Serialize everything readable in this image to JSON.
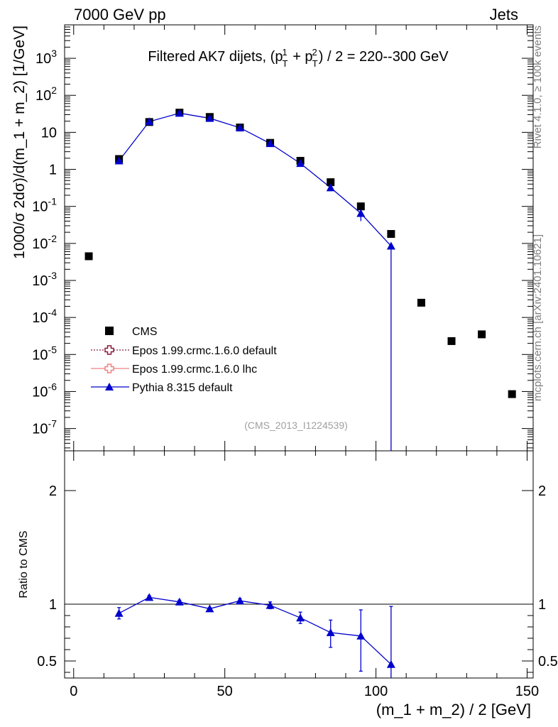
{
  "header": {
    "left": "7000 GeV pp",
    "right": "Jets"
  },
  "side_labels": {
    "top": "Rivet 4.1.0, ≥ 100k events",
    "bottom": "mcplots.cern.ch [arXiv:2401.10621]"
  },
  "chart_data": [
    {
      "type": "scatter",
      "panel": "main",
      "title": "Filtered AK7 dijets",
      "title_suffix": "/ 2 = 220--300 GeV",
      "ylabel": "1000/σ  2dσ)/d(m_1 + m_2) [1/GeV]",
      "watermark": "(CMS_2013_I1224539)",
      "yscale": "log",
      "xlim": [
        -3,
        152
      ],
      "ylim": [
        2.5e-08,
        8000
      ],
      "y_tick_labels": [
        "10^-7",
        "10^-6",
        "10^-5",
        "10^-4",
        "10^-3",
        "10^-2",
        "10^-1",
        "1",
        "10",
        "10^2",
        "10^3"
      ],
      "legend_position": "lower-left",
      "series": [
        {
          "name": "CMS",
          "style": "square",
          "color": "#000000",
          "x": [
            5,
            15,
            25,
            35,
            45,
            55,
            65,
            75,
            85,
            95,
            105,
            115,
            125,
            135,
            145
          ],
          "y": [
            0.0045,
            1.9,
            19.0,
            34.0,
            26.0,
            13.5,
            5.2,
            1.7,
            0.45,
            0.1,
            0.018,
            0.00025,
            2.3e-05,
            3.5e-05,
            8.5e-07
          ]
        },
        {
          "name": "Epos 1.99.crmc.1.6.0 default",
          "style": "open-cross-dotted",
          "color": "#8b1a3a",
          "x": [],
          "y": []
        },
        {
          "name": "Epos 1.99.crmc.1.6.0 lhc",
          "style": "open-cross-solid",
          "color": "#f08080",
          "x": [],
          "y": []
        },
        {
          "name": "Pythia 8.315 default",
          "style": "triangle-line",
          "color": "#0000cc",
          "x": [
            15,
            25,
            35,
            45,
            55,
            65,
            75,
            85,
            95,
            105
          ],
          "y": [
            1.7,
            19.5,
            33.0,
            24.0,
            13.3,
            5.0,
            1.45,
            0.32,
            0.065,
            0.0085
          ],
          "yerr_low": [
            0.05,
            0.3,
            0.4,
            0.3,
            0.2,
            0.1,
            0.05,
            0.03,
            0.025,
            0.0085
          ],
          "yerr_high": [
            0.05,
            0.3,
            0.4,
            0.3,
            0.2,
            0.1,
            0.05,
            0.03,
            0.015,
            0.0
          ]
        }
      ]
    },
    {
      "type": "line",
      "panel": "ratio",
      "ylabel": "Ratio to CMS",
      "xlabel": "(m_1 + m_2) / 2 [GeV]",
      "xlim": [
        -3,
        152
      ],
      "ylim": [
        0.35,
        2.35
      ],
      "x_tick_labels": [
        "0",
        "50",
        "100",
        "150"
      ],
      "y_tick_labels": [
        "0.5",
        "1",
        "2"
      ],
      "reference_line": 1,
      "series": [
        {
          "name": "Pythia 8.315 default",
          "color": "#0000cc",
          "x": [
            15,
            25,
            35,
            45,
            55,
            65,
            75,
            85,
            95,
            105
          ],
          "y": [
            0.92,
            1.06,
            1.02,
            0.96,
            1.03,
            0.99,
            0.88,
            0.75,
            0.72,
            0.47
          ],
          "yerr_low": [
            0.05,
            0.015,
            0.015,
            0.01,
            0.02,
            0.03,
            0.05,
            0.13,
            0.31,
            0.25
          ],
          "yerr_high": [
            0.05,
            0.015,
            0.015,
            0.01,
            0.02,
            0.03,
            0.05,
            0.11,
            0.23,
            0.51
          ]
        }
      ]
    }
  ]
}
